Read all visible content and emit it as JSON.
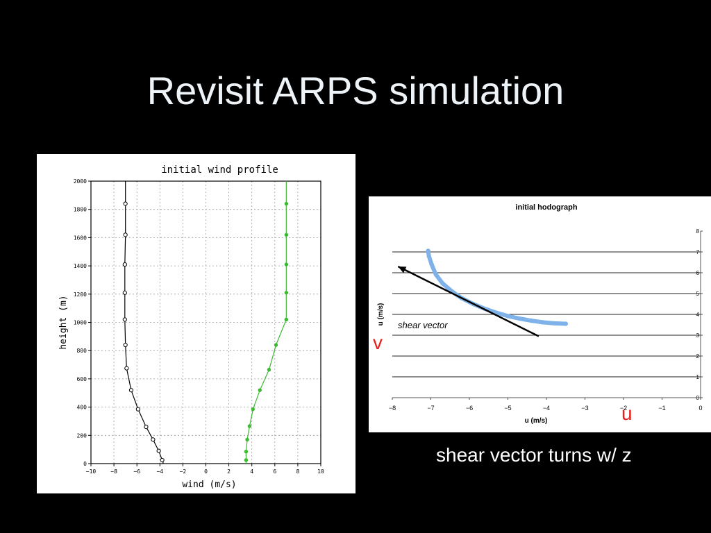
{
  "slide": {
    "title": "Revisit ARPS simulation",
    "caption": "shear vector turns w/ z",
    "label_v": "v",
    "label_u": "u",
    "accent_red": "#e8201b"
  },
  "chart_data": [
    {
      "type": "line",
      "title": "initial wind profile",
      "xlabel": "wind (m/s)",
      "ylabel": "height (m)",
      "xlim": [
        -10,
        10
      ],
      "ylim": [
        0,
        2000
      ],
      "xticks": [
        -10,
        -8,
        -6,
        -4,
        -2,
        0,
        2,
        4,
        6,
        8,
        10
      ],
      "yticks": [
        0,
        200,
        400,
        600,
        800,
        1000,
        1200,
        1400,
        1600,
        1800,
        2000
      ],
      "grid": true,
      "series": [
        {
          "color": "#000000",
          "marker": "open-circle",
          "points": [
            [
              -3.7,
              0
            ],
            [
              -3.8,
              25
            ],
            [
              -4.1,
              90
            ],
            [
              -4.6,
              170
            ],
            [
              -5.2,
              260
            ],
            [
              -5.9,
              385
            ],
            [
              -6.5,
              520
            ],
            [
              -6.9,
              675
            ],
            [
              -7.0,
              840
            ],
            [
              -7.05,
              1020
            ],
            [
              -7.05,
              1210
            ],
            [
              -7.05,
              1410
            ],
            [
              -7.0,
              1620
            ],
            [
              -7.0,
              1840
            ],
            [
              -7.0,
              2000
            ]
          ],
          "markers": [
            [
              -3.8,
              25
            ],
            [
              -4.1,
              90
            ],
            [
              -4.6,
              170
            ],
            [
              -5.2,
              260
            ],
            [
              -5.9,
              385
            ],
            [
              -6.5,
              520
            ],
            [
              -6.9,
              675
            ],
            [
              -7.0,
              840
            ],
            [
              -7.05,
              1020
            ],
            [
              -7.05,
              1210
            ],
            [
              -7.05,
              1410
            ],
            [
              -7.0,
              1620
            ],
            [
              -7.0,
              1840
            ]
          ]
        },
        {
          "color": "#3cb832",
          "marker": "filled-circle",
          "points": [
            [
              3.5,
              0
            ],
            [
              3.5,
              25
            ],
            [
              3.5,
              85
            ],
            [
              3.6,
              170
            ],
            [
              3.8,
              265
            ],
            [
              4.1,
              385
            ],
            [
              4.7,
              520
            ],
            [
              5.5,
              665
            ],
            [
              6.1,
              840
            ],
            [
              7.0,
              1020
            ],
            [
              7.0,
              1210
            ],
            [
              7.0,
              1410
            ],
            [
              7.0,
              1620
            ],
            [
              7.0,
              1840
            ],
            [
              7.0,
              2000
            ]
          ],
          "markers": [
            [
              3.5,
              25
            ],
            [
              3.5,
              85
            ],
            [
              3.6,
              170
            ],
            [
              3.8,
              265
            ],
            [
              4.1,
              385
            ],
            [
              4.7,
              520
            ],
            [
              5.5,
              665
            ],
            [
              6.1,
              840
            ],
            [
              7.0,
              1020
            ],
            [
              7.0,
              1210
            ],
            [
              7.0,
              1410
            ],
            [
              7.0,
              1620
            ],
            [
              7.0,
              1840
            ]
          ]
        }
      ]
    },
    {
      "type": "scatter",
      "title": "initial hodograph",
      "xlabel": "u (m/s)",
      "ylabel": "u (m/s)",
      "xlim": [
        -8,
        0
      ],
      "ylim": [
        0,
        8
      ],
      "xticks": [
        -8,
        -7,
        -6,
        -5,
        -4,
        -3,
        -2,
        -1,
        0
      ],
      "yticks": [
        0,
        1,
        2,
        3,
        4,
        5,
        6,
        7,
        8
      ],
      "grid": "horizontal",
      "series": [
        {
          "color": "#7eb2e8",
          "points": [
            [
              -3.5,
              3.55
            ],
            [
              -3.8,
              3.57
            ],
            [
              -4.1,
              3.62
            ],
            [
              -4.4,
              3.7
            ],
            [
              -4.7,
              3.8
            ],
            [
              -5.0,
              3.92
            ],
            [
              -5.3,
              4.08
            ],
            [
              -5.6,
              4.27
            ],
            [
              -5.9,
              4.5
            ],
            [
              -6.2,
              4.78
            ],
            [
              -6.45,
              5.1
            ],
            [
              -6.7,
              5.5
            ],
            [
              -6.87,
              5.92
            ],
            [
              -6.98,
              6.4
            ],
            [
              -7.05,
              6.8
            ],
            [
              -7.07,
              7.05
            ]
          ]
        }
      ],
      "annotation": {
        "text": "shear vector",
        "arrow_from": [
          -4.2,
          2.95
        ],
        "arrow_to": [
          -7.85,
          6.3
        ]
      }
    }
  ]
}
